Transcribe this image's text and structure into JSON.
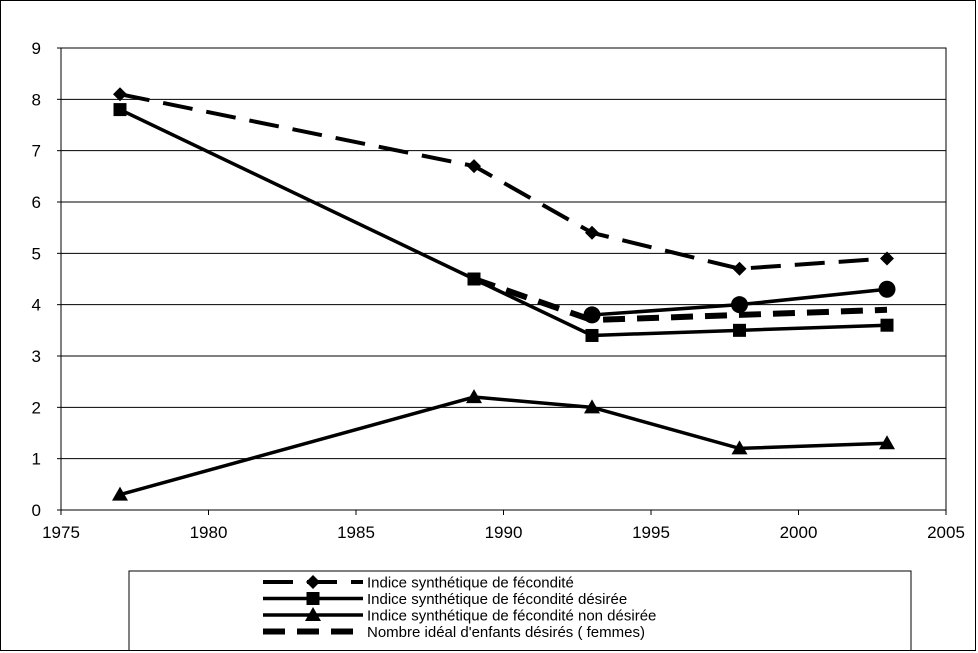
{
  "chart_data": {
    "type": "line",
    "title": "",
    "xlabel": "",
    "ylabel": "",
    "xlim": [
      1975,
      2005
    ],
    "ylim": [
      0,
      9
    ],
    "x_ticks": [
      1975,
      1980,
      1985,
      1990,
      1995,
      2000,
      2005
    ],
    "y_ticks": [
      0,
      1,
      2,
      3,
      4,
      5,
      6,
      7,
      8,
      9
    ],
    "grid": "horizontal",
    "legend_position": "bottom",
    "series": [
      {
        "name": "Indice synthétique de fécondité",
        "style": "dashed",
        "marker": "diamond",
        "x": [
          1977,
          1989,
          1993,
          1998,
          2003
        ],
        "y": [
          8.1,
          6.7,
          5.4,
          4.7,
          4.9
        ]
      },
      {
        "name": "Indice synthétique de fécondité désirée",
        "style": "solid",
        "marker": "square",
        "x": [
          1977,
          1989,
          1993,
          1998,
          2003
        ],
        "y": [
          7.8,
          4.5,
          3.4,
          3.5,
          3.6
        ]
      },
      {
        "name": "Indice synthétique de fécondité non désirée",
        "style": "solid",
        "marker": "triangle",
        "x": [
          1977,
          1989,
          1993,
          1998,
          2003
        ],
        "y": [
          0.3,
          2.2,
          2.0,
          1.2,
          1.3
        ]
      },
      {
        "name": "Nombre idéal d'enfants désirés ( femmes)",
        "style": "thick-dashed",
        "marker": "none",
        "x": [
          1989,
          1993,
          1998,
          2003
        ],
        "y": [
          4.5,
          3.7,
          3.8,
          3.9
        ]
      },
      {
        "name": "",
        "style": "solid",
        "marker": "circle",
        "x": [
          1993,
          1998,
          2003
        ],
        "y": [
          3.8,
          4.0,
          4.3
        ]
      }
    ]
  }
}
